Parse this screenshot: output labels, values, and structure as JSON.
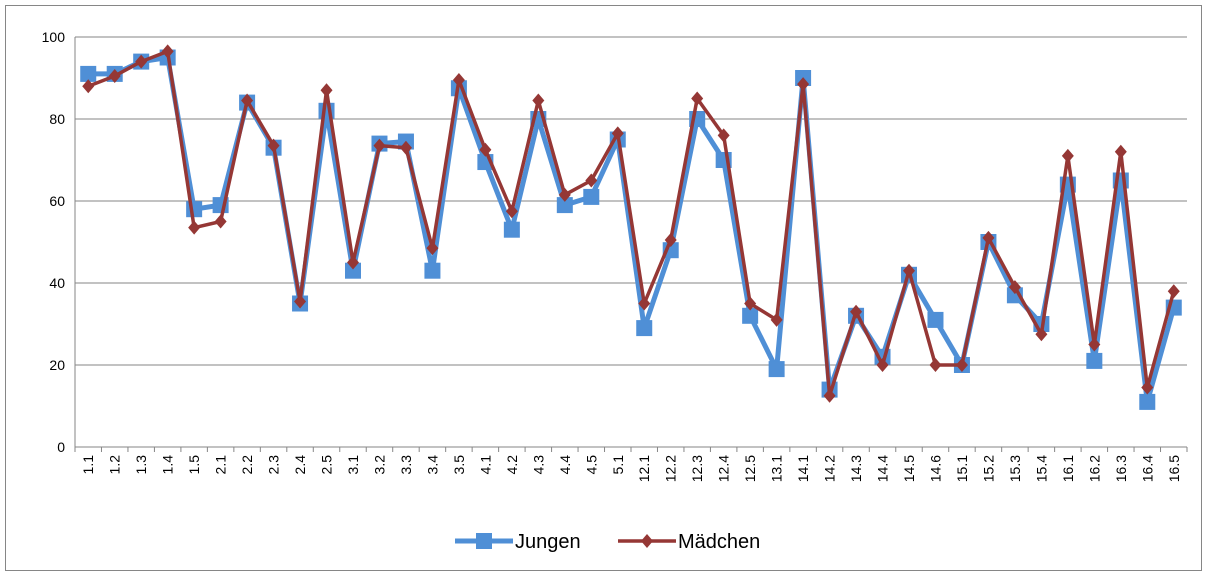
{
  "chart_data": {
    "type": "line",
    "categories": [
      "1.1",
      "1.2",
      "1.3",
      "1.4",
      "1.5",
      "2.1",
      "2.2",
      "2.3",
      "2.4",
      "2.5",
      "3.1",
      "3.2",
      "3.3",
      "3.4",
      "3.5",
      "4.1",
      "4.2",
      "4.3",
      "4.4",
      "4.5",
      "5.1",
      "12.1",
      "12.2",
      "12.3",
      "12.4",
      "12.5",
      "13.1",
      "14.1",
      "14.2",
      "14.3",
      "14.4",
      "14.5",
      "14.6",
      "15.1",
      "15.2",
      "15.3",
      "15.4",
      "16.1",
      "16.2",
      "16.3",
      "16.4",
      "16.5"
    ],
    "series": [
      {
        "name": "Jungen",
        "color": "#4f8fd6",
        "marker": "square",
        "values": [
          91,
          91,
          94,
          95,
          58,
          59,
          84,
          73,
          35,
          82,
          43,
          74,
          74.5,
          43,
          87.5,
          69.5,
          53,
          80,
          59,
          61,
          75,
          29,
          48,
          80,
          70,
          32,
          19,
          90,
          14,
          32,
          22,
          42,
          31,
          20,
          50,
          37,
          30,
          64,
          21,
          65,
          11,
          34
        ]
      },
      {
        "name": "Mädchen",
        "color": "#953735",
        "marker": "diamond",
        "values": [
          88,
          90.5,
          94,
          96.5,
          53.5,
          55,
          84.5,
          73.5,
          35.5,
          87,
          45,
          73.5,
          73,
          48.5,
          89.5,
          72.5,
          57.5,
          84.5,
          61.5,
          65,
          76.5,
          35,
          50.5,
          85,
          76,
          35,
          31,
          88.5,
          12.5,
          33,
          20,
          43,
          20,
          20,
          51,
          39,
          27.5,
          71,
          25,
          72,
          14.5,
          38
        ]
      }
    ],
    "ylim": [
      0,
      100
    ],
    "yticks": [
      0,
      20,
      40,
      60,
      80,
      100
    ],
    "grid": true,
    "legend": "bottom"
  }
}
